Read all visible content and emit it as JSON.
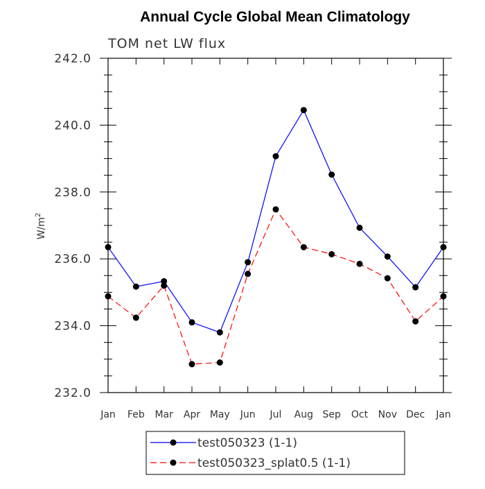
{
  "chart_data": {
    "type": "line",
    "title": "Annual Cycle Global Mean Climatology",
    "subtitle": "TOM net LW flux",
    "ylabel": "W/m",
    "ylabel_superscript": "2",
    "ylim": [
      232.0,
      242.0
    ],
    "yticks": [
      "232.0",
      "234.0",
      "236.0",
      "238.0",
      "240.0",
      "242.0"
    ],
    "categories": [
      "Jan",
      "Feb",
      "Mar",
      "Apr",
      "May",
      "Jun",
      "Jul",
      "Aug",
      "Sep",
      "Oct",
      "Nov",
      "Dec",
      "Jan"
    ],
    "series": [
      {
        "name": "test050323 (1-1)",
        "color": "#0000ff",
        "dash": "solid",
        "values": [
          236.35,
          235.17,
          235.33,
          234.1,
          233.8,
          235.9,
          239.07,
          240.45,
          238.52,
          236.93,
          236.07,
          235.15,
          236.35
        ]
      },
      {
        "name": "test050323_splat0.5 (1-1)",
        "color": "#ff0000",
        "dash": "dashed",
        "values": [
          234.88,
          234.24,
          235.2,
          232.85,
          232.9,
          235.55,
          237.48,
          236.35,
          236.14,
          235.85,
          235.42,
          234.13,
          234.88
        ]
      }
    ],
    "grid": false,
    "legend_position": "bottom"
  }
}
